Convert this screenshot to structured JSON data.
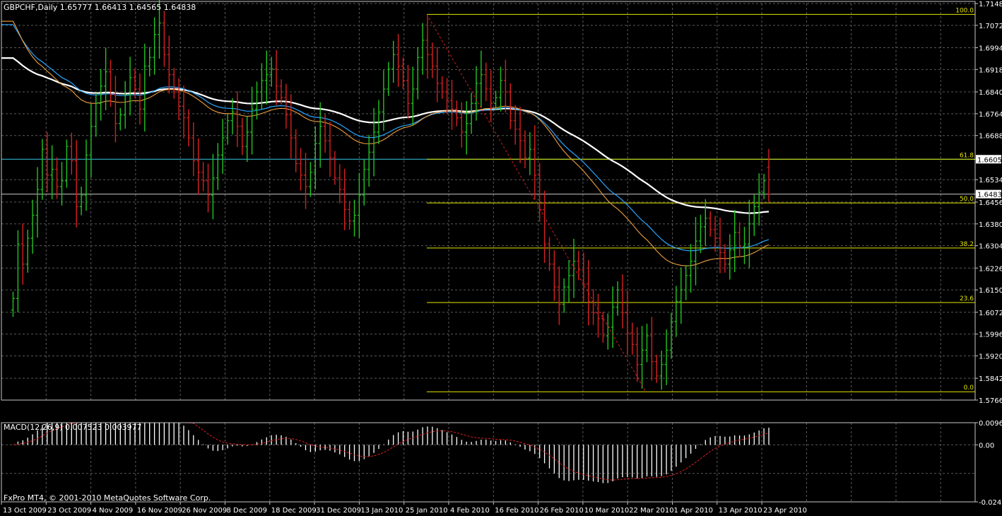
{
  "colors": {
    "background": "#000000",
    "grid": "#5a5a5a",
    "frame": "#c8c8c8",
    "text": "#ffffff",
    "bull": "#22c322",
    "bear": "#d72020",
    "ma_fast": "#f0a040",
    "ma_mid": "#2aa6ff",
    "ma_slow": "#ffffff",
    "fib": "#e6e600",
    "fib_label": "#e6e600",
    "horizontal_blue": "#38c8e6",
    "horizontal_white": "#c8c8c8",
    "trend": "#d72020",
    "macd_hist": "#ffffff",
    "macd_signal": "#e02020",
    "price_box_bg": "#ffffff",
    "price_box_text": "#000000"
  },
  "header": {
    "symbol_info": "GBPCHF,Daily  1.65777 1.66413 1.64565 1.64838",
    "macd_info": "MACD(12,26,9) 0.007523 0.003977",
    "copyright": "FxPro MT4, © 2001-2010 MetaQuotes Software Corp."
  },
  "chart_data": [
    {
      "type": "ohlc",
      "title": "GBPCHF,Daily",
      "last": {
        "open": 1.65777,
        "high": 1.66413,
        "low": 1.64565,
        "close": 1.64838
      },
      "ylim": [
        1.5766,
        1.7148
      ],
      "y_ticks": [
        "1.71480",
        "1.70720",
        "1.69940",
        "1.69180",
        "1.68400",
        "1.67640",
        "1.66880",
        "1.66054",
        "1.65340",
        "1.64838",
        "1.64560",
        "1.63800",
        "1.63040",
        "1.62260",
        "1.61500",
        "1.60720",
        "1.59960",
        "1.59200",
        "1.58420",
        "1.57660"
      ],
      "highlighted_prices": [
        {
          "label": "1.66054",
          "value": 1.66054,
          "style": "blue"
        },
        {
          "label": "1.64838",
          "value": 1.64838,
          "style": "white"
        }
      ],
      "x_labels": [
        "13 Oct 2009",
        "23 Oct 2009",
        "4 Nov 2009",
        "16 Nov 2009",
        "26 Nov 2009",
        "8 Dec 2009",
        "18 Dec 2009",
        "31 Dec 2009",
        "13 Jan 2010",
        "25 Jan 2010",
        "4 Feb 2010",
        "16 Feb 2010",
        "26 Feb 2010",
        "10 Mar 2010",
        "22 Mar 2010",
        "1 Apr 2010",
        "13 Apr 2010",
        "23 Apr 2010"
      ],
      "closes": [
        1.612,
        1.631,
        1.624,
        1.633,
        1.641,
        1.65,
        1.664,
        1.655,
        1.657,
        1.651,
        1.653,
        1.665,
        1.66,
        1.644,
        1.648,
        1.662,
        1.672,
        1.68,
        1.686,
        1.691,
        1.683,
        1.673,
        1.676,
        1.683,
        1.689,
        1.685,
        1.678,
        1.693,
        1.696,
        1.704,
        1.708,
        1.697,
        1.69,
        1.684,
        1.679,
        1.675,
        1.668,
        1.66,
        1.656,
        1.653,
        1.648,
        1.654,
        1.662,
        1.668,
        1.674,
        1.677,
        1.672,
        1.665,
        1.67,
        1.678,
        1.684,
        1.688,
        1.69,
        1.692,
        1.686,
        1.682,
        1.676,
        1.668,
        1.659,
        1.655,
        1.651,
        1.656,
        1.666,
        1.672,
        1.667,
        1.661,
        1.654,
        1.65,
        1.643,
        1.639,
        1.641,
        1.648,
        1.657,
        1.663,
        1.67,
        1.677,
        1.685,
        1.692,
        1.697,
        1.693,
        1.688,
        1.68,
        1.685,
        1.696,
        1.702,
        1.697,
        1.693,
        1.687,
        1.684,
        1.681,
        1.678,
        1.675,
        1.67,
        1.673,
        1.68,
        1.687,
        1.69,
        1.685,
        1.68,
        1.682,
        1.688,
        1.684,
        1.674,
        1.671,
        1.667,
        1.661,
        1.664,
        1.655,
        1.643,
        1.631,
        1.624,
        1.616,
        1.61,
        1.616,
        1.62,
        1.625,
        1.622,
        1.617,
        1.611,
        1.607,
        1.605,
        1.599,
        1.602,
        1.609,
        1.615,
        1.607,
        1.6,
        1.596,
        1.589,
        1.594,
        1.599,
        1.59,
        1.585,
        1.589,
        1.594,
        1.604,
        1.611,
        1.615,
        1.62,
        1.625,
        1.632,
        1.637,
        1.64,
        1.636,
        1.633,
        1.628,
        1.624,
        1.629,
        1.635,
        1.63,
        1.631,
        1.638,
        1.644,
        1.649,
        1.653,
        1.648
      ]
    },
    {
      "type": "macd",
      "title": "MACD(12,26,9) 0.007523 0.003977",
      "params": [
        12,
        26,
        9
      ],
      "main": 0.007523,
      "signal": 0.003977,
      "ylim": [
        -0.02495,
        0.00968
      ],
      "y_ticks": [
        "0.00968",
        "0.00",
        "-0.02495"
      ]
    }
  ],
  "fib_levels": [
    {
      "label": "100.0",
      "value": 1.711
    },
    {
      "label": "61.8",
      "value": 1.66054
    },
    {
      "label": "50.0",
      "value": 1.6453
    },
    {
      "label": "38.2",
      "value": 1.6296
    },
    {
      "label": "23.6",
      "value": 1.6106
    },
    {
      "label": "0.0",
      "value": 1.5795
    }
  ]
}
